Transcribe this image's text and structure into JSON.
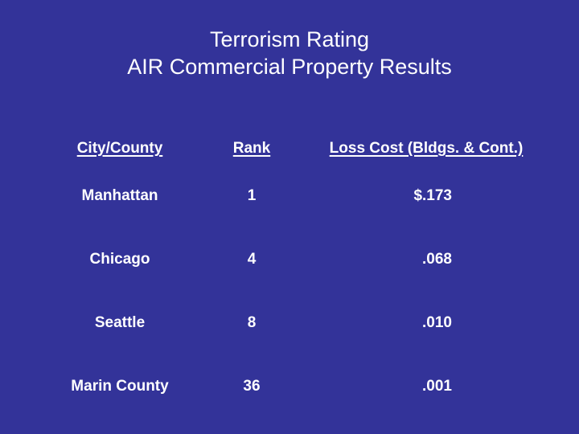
{
  "slide": {
    "background_color": "#333399",
    "text_color": "#ffffff",
    "title_line1": "Terrorism Rating",
    "title_line2": "AIR Commercial Property Results"
  },
  "table": {
    "headers": {
      "city": "City/County",
      "rank": "Rank",
      "loss_cost": "Loss Cost (Bldgs. & Cont.)"
    },
    "rows": [
      {
        "city": "Manhattan",
        "rank": "1",
        "loss_cost": "$.173"
      },
      {
        "city": "Chicago",
        "rank": "4",
        "loss_cost": ".068"
      },
      {
        "city": "Seattle",
        "rank": "8",
        "loss_cost": ".010"
      },
      {
        "city": "Marin County",
        "rank": "36",
        "loss_cost": ".001"
      }
    ]
  }
}
